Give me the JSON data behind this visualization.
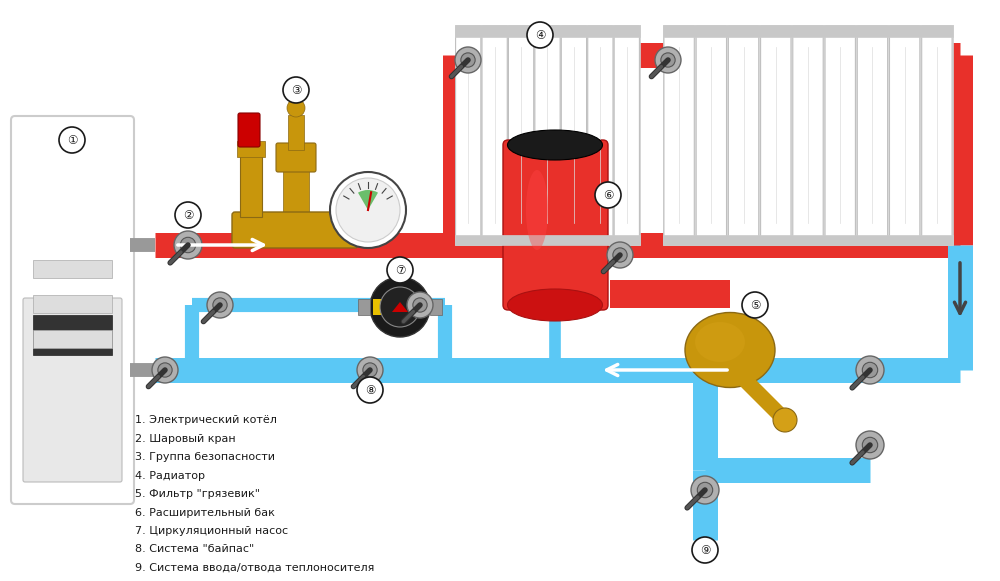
{
  "bg_color": "#ffffff",
  "red_color": "#e8302a",
  "blue_color": "#5bc8f5",
  "brass_color": "#c8960c",
  "black_color": "#1a1a1a",
  "gray_color": "#888888",
  "lgray_color": "#cccccc",
  "white_color": "#ffffff",
  "legend_items": [
    "1. Электрический котёл",
    "2. Шаровый кран",
    "3. Группа безопасности",
    "4. Радиатор",
    "5. Фильтр \"грязевик\"",
    "6. Расширительный бак",
    "7. Циркуляционный насос",
    "8. Система \"байпас\"",
    "9. Система ввода/отвода теплоносителя"
  ]
}
